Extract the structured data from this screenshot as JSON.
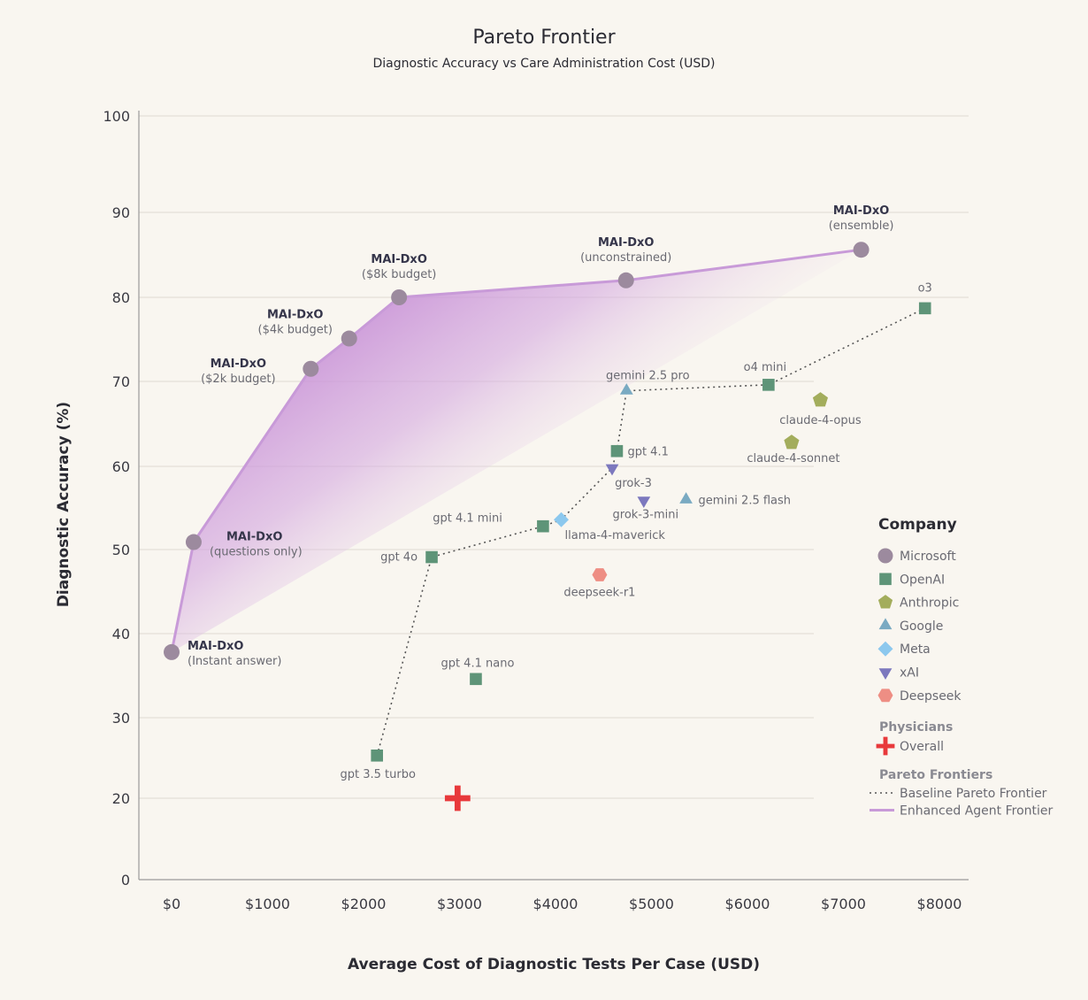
{
  "chart_data": {
    "type": "scatter",
    "title": "Pareto Frontier",
    "subtitle": "Diagnostic Accuracy vs Care Administration Cost (USD)",
    "xlabel": "Average Cost of Diagnostic Tests Per Case (USD)",
    "ylabel": "Diagnostic Accuracy (%)",
    "xlim": [
      -350,
      8350
    ],
    "ylim": [
      0,
      100
    ],
    "x_ticks": [
      {
        "value": 0,
        "label": "$0"
      },
      {
        "value": 1000,
        "label": "$1000"
      },
      {
        "value": 2000,
        "label": "$2000"
      },
      {
        "value": 3000,
        "label": "$3000"
      },
      {
        "value": 4000,
        "label": "$4000"
      },
      {
        "value": 5000,
        "label": "$5000"
      },
      {
        "value": 6000,
        "label": "$6000"
      },
      {
        "value": 7000,
        "label": "$7000"
      },
      {
        "value": 8000,
        "label": "$8000"
      }
    ],
    "y_ticks": [
      0,
      20,
      30,
      40,
      50,
      60,
      70,
      80,
      90,
      100
    ],
    "grid": "horizontal",
    "legend_position": "right",
    "points": [
      {
        "id": "mai-instant",
        "name": "MAI-DxO",
        "sub": "(Instant answer)",
        "company": "Microsoft",
        "x": 0,
        "y": 37.8
      },
      {
        "id": "mai-questions",
        "name": "MAI-DxO",
        "sub": "(questions only)",
        "company": "Microsoft",
        "x": 230,
        "y": 50.9
      },
      {
        "id": "mai-2k",
        "name": "MAI-DxO",
        "sub": "($2k budget)",
        "company": "Microsoft",
        "x": 1450,
        "y": 71.5
      },
      {
        "id": "mai-4k",
        "name": "MAI-DxO",
        "sub": "($4k budget)",
        "company": "Microsoft",
        "x": 1850,
        "y": 75.1
      },
      {
        "id": "mai-8k",
        "name": "MAI-DxO",
        "sub": "($8k budget)",
        "company": "Microsoft",
        "x": 2370,
        "y": 80.0
      },
      {
        "id": "mai-unconstrained",
        "name": "MAI-DxO",
        "sub": "(unconstrained)",
        "company": "Microsoft",
        "x": 4735,
        "y": 82.0
      },
      {
        "id": "mai-ensemble",
        "name": "MAI-DxO",
        "sub": "(ensemble)",
        "company": "Microsoft",
        "x": 7185,
        "y": 85.6
      },
      {
        "id": "o3",
        "name": "o3",
        "company": "OpenAI",
        "x": 7850,
        "y": 78.7
      },
      {
        "id": "o4-mini",
        "name": "o4 mini",
        "company": "OpenAI",
        "x": 6220,
        "y": 69.6
      },
      {
        "id": "gpt-4-1",
        "name": "gpt 4.1",
        "company": "OpenAI",
        "x": 4640,
        "y": 61.8
      },
      {
        "id": "gpt-4-1-mini",
        "name": "gpt 4.1 mini",
        "company": "OpenAI",
        "x": 3870,
        "y": 52.8
      },
      {
        "id": "gpt-4o",
        "name": "gpt 4o",
        "company": "OpenAI",
        "x": 2710,
        "y": 49.1
      },
      {
        "id": "gpt-4-1-nano",
        "name": "gpt 4.1 nano",
        "company": "OpenAI",
        "x": 3170,
        "y": 34.6
      },
      {
        "id": "gpt-3-5-turbo",
        "name": "gpt 3.5 turbo",
        "company": "OpenAI",
        "x": 2140,
        "y": 25.3
      },
      {
        "id": "claude-4-opus",
        "name": "claude-4-opus",
        "company": "Anthropic",
        "x": 6760,
        "y": 67.8
      },
      {
        "id": "claude-4-sonnet",
        "name": "claude-4-sonnet",
        "company": "Anthropic",
        "x": 6460,
        "y": 62.8
      },
      {
        "id": "gemini-2-5-pro",
        "name": "gemini 2.5 pro",
        "company": "Google",
        "x": 4740,
        "y": 68.9
      },
      {
        "id": "gemini-2-5-flash",
        "name": "gemini 2.5 flash",
        "company": "Google",
        "x": 5360,
        "y": 56.0
      },
      {
        "id": "llama-4-maverick",
        "name": "llama-4-maverick",
        "company": "Meta",
        "x": 4060,
        "y": 53.6
      },
      {
        "id": "grok-3",
        "name": "grok-3",
        "company": "xAI",
        "x": 4590,
        "y": 59.8
      },
      {
        "id": "grok-3-mini",
        "name": "grok-3-mini",
        "company": "xAI",
        "x": 4920,
        "y": 55.9
      },
      {
        "id": "deepseek-r1",
        "name": "deepseek-r1",
        "company": "Deepseek",
        "x": 4460,
        "y": 47.0
      },
      {
        "id": "physicians",
        "name": "",
        "company": "Physicians",
        "x": 2980,
        "y": 20.0
      }
    ],
    "baseline_frontier": [
      {
        "x": 2140,
        "y": 25.3
      },
      {
        "x": 2710,
        "y": 49.1
      },
      {
        "x": 3870,
        "y": 52.8
      },
      {
        "x": 4060,
        "y": 53.6
      },
      {
        "x": 4590,
        "y": 59.8
      },
      {
        "x": 4640,
        "y": 61.8
      },
      {
        "x": 4740,
        "y": 68.9
      },
      {
        "x": 6220,
        "y": 69.6
      },
      {
        "x": 7850,
        "y": 78.7
      }
    ],
    "enhanced_frontier": [
      {
        "x": 0,
        "y": 37.8
      },
      {
        "x": 230,
        "y": 50.9
      },
      {
        "x": 1450,
        "y": 71.5
      },
      {
        "x": 1850,
        "y": 75.1
      },
      {
        "x": 2370,
        "y": 80.0
      },
      {
        "x": 4735,
        "y": 82.0
      },
      {
        "x": 7185,
        "y": 85.6
      }
    ]
  },
  "legend": {
    "title": "Company",
    "companies": [
      {
        "name": "Microsoft",
        "color": "#9c8a9e",
        "shape": "circle"
      },
      {
        "name": "OpenAI",
        "color": "#5e9478",
        "shape": "square"
      },
      {
        "name": "Anthropic",
        "color": "#a3ad5c",
        "shape": "pentagon"
      },
      {
        "name": "Google",
        "color": "#7aaac2",
        "shape": "triangle-up"
      },
      {
        "name": "Meta",
        "color": "#8cc8ee",
        "shape": "diamond"
      },
      {
        "name": "xAI",
        "color": "#7c78be",
        "shape": "triangle-down"
      },
      {
        "name": "Deepseek",
        "color": "#ee8e84",
        "shape": "hexagon"
      }
    ],
    "physicians_title": "Physicians",
    "physicians_item": {
      "name": "Overall",
      "color": "#e8393b",
      "shape": "plus"
    },
    "frontiers_title": "Pareto Frontiers",
    "frontier_items": [
      {
        "name": "Baseline Pareto Frontier",
        "style": "dotted",
        "color": "#555555"
      },
      {
        "name": "Enhanced Agent Frontier",
        "style": "solid",
        "color": "#c89ad8"
      }
    ]
  }
}
